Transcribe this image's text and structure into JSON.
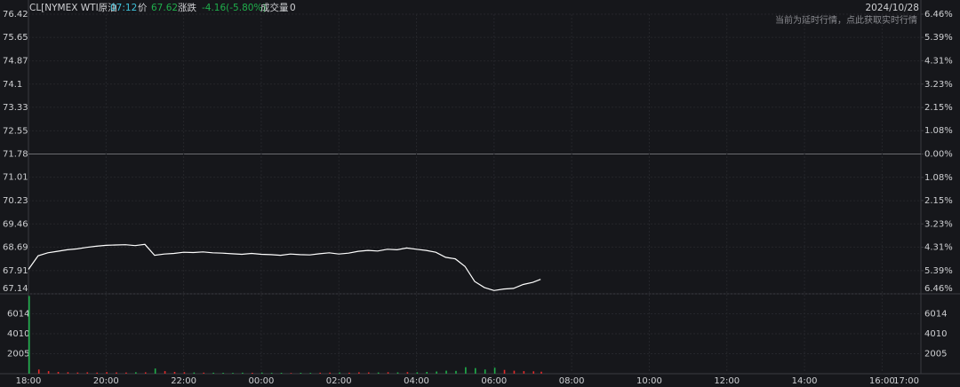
{
  "header": {
    "symbol": "CL[NYMEX WTI原油",
    "time": "07:12",
    "price_label": "价",
    "price": "67.62",
    "change_label": "涨跌",
    "change": "-4.16(-5.80%)",
    "volume_label": "成交量",
    "volume": "0",
    "date": "2024/10/28",
    "note": "当前为延时行情，点此获取实时行情"
  },
  "chart_data": {
    "type": "line",
    "x": [
      "18:00",
      "18:15",
      "18:30",
      "18:45",
      "19:00",
      "19:15",
      "19:30",
      "19:45",
      "20:00",
      "20:15",
      "20:30",
      "20:45",
      "21:00",
      "21:15",
      "21:30",
      "21:45",
      "22:00",
      "22:15",
      "22:30",
      "22:45",
      "23:00",
      "23:15",
      "23:30",
      "23:45",
      "00:00",
      "00:15",
      "00:30",
      "00:45",
      "01:00",
      "01:15",
      "01:30",
      "01:45",
      "02:00",
      "02:15",
      "02:30",
      "02:45",
      "03:00",
      "03:15",
      "03:30",
      "03:45",
      "04:00",
      "04:15",
      "04:30",
      "04:45",
      "05:00",
      "05:15",
      "05:30",
      "05:45",
      "06:00",
      "06:15",
      "06:30",
      "06:45",
      "07:00",
      "07:12"
    ],
    "series": [
      {
        "name": "价",
        "color": "#ffffff",
        "values": [
          67.95,
          68.4,
          68.5,
          68.55,
          68.6,
          68.63,
          68.68,
          68.72,
          68.75,
          68.76,
          68.77,
          68.74,
          68.78,
          68.42,
          68.46,
          68.48,
          68.52,
          68.51,
          68.53,
          68.5,
          68.49,
          68.47,
          68.45,
          68.48,
          68.45,
          68.44,
          68.42,
          68.46,
          68.44,
          68.43,
          68.47,
          68.5,
          68.46,
          68.49,
          68.55,
          68.58,
          68.56,
          68.62,
          68.6,
          68.66,
          68.62,
          68.58,
          68.52,
          68.35,
          68.3,
          68.05,
          67.55,
          67.35,
          67.25,
          67.3,
          67.32,
          67.45,
          67.52,
          67.62
        ]
      },
      {
        "name": "成交量",
        "up_color": "#e02b2b",
        "down_color": "#1fae4b",
        "values": [
          7800,
          420,
          260,
          180,
          150,
          120,
          140,
          110,
          160,
          130,
          120,
          150,
          140,
          520,
          260,
          180,
          150,
          120,
          110,
          100,
          90,
          80,
          100,
          90,
          110,
          80,
          90,
          70,
          90,
          80,
          100,
          110,
          120,
          100,
          140,
          130,
          120,
          150,
          130,
          160,
          140,
          180,
          220,
          300,
          280,
          650,
          560,
          420,
          600,
          380,
          300,
          260,
          240,
          200
        ]
      }
    ],
    "baseline": 71.78,
    "ylim": [
      67.14,
      76.42
    ],
    "yticks": [
      76.42,
      75.65,
      74.87,
      74.1,
      73.33,
      72.55,
      71.78,
      71.01,
      70.23,
      69.46,
      68.69,
      67.91,
      67.14
    ],
    "y2lim": [
      -6.46,
      6.46
    ],
    "y2ticks": [
      {
        "value": 6.46,
        "label": "6.46%"
      },
      {
        "value": 5.39,
        "label": "5.39%"
      },
      {
        "value": 4.31,
        "label": "4.31%"
      },
      {
        "value": 3.23,
        "label": "3.23%"
      },
      {
        "value": 2.15,
        "label": "2.15%"
      },
      {
        "value": 1.08,
        "label": "1.08%"
      },
      {
        "value": 0,
        "label": "0.00%"
      },
      {
        "value": -1.08,
        "label": "1.08%"
      },
      {
        "value": -2.15,
        "label": "2.15%"
      },
      {
        "value": -3.23,
        "label": "3.23%"
      },
      {
        "value": -4.31,
        "label": "4.31%"
      },
      {
        "value": -5.39,
        "label": "5.39%"
      },
      {
        "value": -6.46,
        "label": "6.46%"
      }
    ],
    "vol_ylim": [
      0,
      8019
    ],
    "vol_ticks": [
      6014,
      4010,
      2005
    ],
    "xticks": [
      "18:00",
      "20:00",
      "22:00",
      "00:00",
      "02:00",
      "04:00",
      "06:00",
      "08:00",
      "10:00",
      "12:00",
      "14:00",
      "16:00",
      "17:00"
    ],
    "up_color": "#e02b2b",
    "down_color": "#1fae4b",
    "flat_color": "#cfd0d3",
    "grid": true
  }
}
